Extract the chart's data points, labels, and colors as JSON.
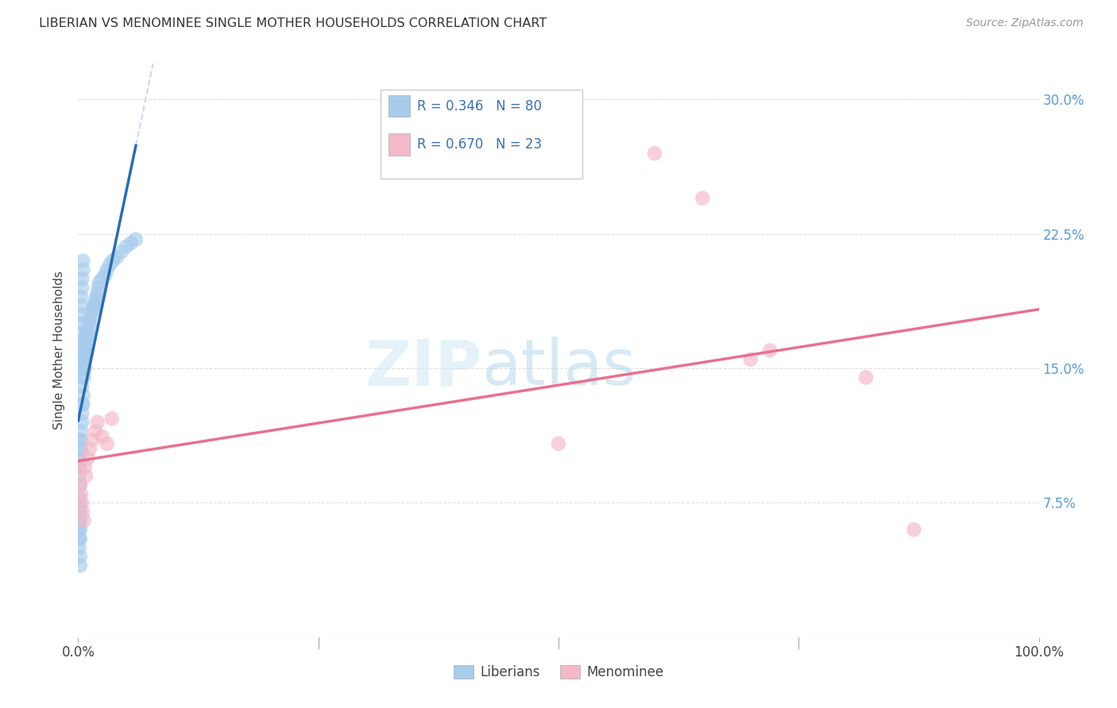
{
  "title": "LIBERIAN VS MENOMINEE SINGLE MOTHER HOUSEHOLDS CORRELATION CHART",
  "source": "Source: ZipAtlas.com",
  "ylabel": "Single Mother Households",
  "xlim": [
    0.0,
    1.0
  ],
  "ylim": [
    0.0,
    0.32
  ],
  "yticks": [
    0.075,
    0.15,
    0.225,
    0.3
  ],
  "ytick_labels": [
    "7.5%",
    "15.0%",
    "22.5%",
    "30.0%"
  ],
  "blue_scatter_color": "#a8ccec",
  "pink_scatter_color": "#f4b8c8",
  "blue_line_color": "#2b6cb0",
  "pink_line_color": "#e87090",
  "dashed_line_color": "#b8d4ee",
  "background_color": "#ffffff",
  "grid_color": "#dddddd",
  "liberian_x": [
    0.001,
    0.001,
    0.001,
    0.001,
    0.001,
    0.001,
    0.001,
    0.001,
    0.001,
    0.002,
    0.002,
    0.002,
    0.002,
    0.002,
    0.002,
    0.002,
    0.002,
    0.002,
    0.002,
    0.002,
    0.003,
    0.003,
    0.003,
    0.003,
    0.003,
    0.003,
    0.003,
    0.003,
    0.003,
    0.004,
    0.004,
    0.004,
    0.004,
    0.004,
    0.004,
    0.004,
    0.005,
    0.005,
    0.005,
    0.005,
    0.005,
    0.005,
    0.006,
    0.006,
    0.006,
    0.006,
    0.007,
    0.007,
    0.007,
    0.007,
    0.008,
    0.008,
    0.008,
    0.009,
    0.009,
    0.01,
    0.01,
    0.011,
    0.011,
    0.012,
    0.013,
    0.014,
    0.015,
    0.016,
    0.017,
    0.018,
    0.019,
    0.02,
    0.021,
    0.022,
    0.025,
    0.028,
    0.03,
    0.033,
    0.036,
    0.04,
    0.045,
    0.05,
    0.055,
    0.06
  ],
  "liberian_y": [
    0.09,
    0.095,
    0.1,
    0.078,
    0.072,
    0.065,
    0.06,
    0.055,
    0.05,
    0.105,
    0.11,
    0.098,
    0.085,
    0.075,
    0.07,
    0.065,
    0.06,
    0.055,
    0.045,
    0.04,
    0.19,
    0.185,
    0.18,
    0.175,
    0.17,
    0.165,
    0.115,
    0.11,
    0.105,
    0.2,
    0.195,
    0.145,
    0.14,
    0.13,
    0.125,
    0.12,
    0.21,
    0.205,
    0.155,
    0.15,
    0.135,
    0.13,
    0.16,
    0.155,
    0.15,
    0.145,
    0.165,
    0.16,
    0.155,
    0.15,
    0.168,
    0.162,
    0.158,
    0.17,
    0.165,
    0.172,
    0.168,
    0.175,
    0.17,
    0.178,
    0.175,
    0.18,
    0.182,
    0.185,
    0.185,
    0.188,
    0.19,
    0.192,
    0.195,
    0.198,
    0.2,
    0.202,
    0.205,
    0.208,
    0.21,
    0.212,
    0.215,
    0.218,
    0.22,
    0.222
  ],
  "menominee_x": [
    0.001,
    0.002,
    0.003,
    0.004,
    0.005,
    0.006,
    0.007,
    0.008,
    0.01,
    0.012,
    0.015,
    0.018,
    0.02,
    0.025,
    0.03,
    0.035,
    0.5,
    0.6,
    0.65,
    0.7,
    0.72,
    0.82,
    0.87
  ],
  "menominee_y": [
    0.095,
    0.085,
    0.08,
    0.075,
    0.07,
    0.065,
    0.095,
    0.09,
    0.1,
    0.105,
    0.11,
    0.115,
    0.12,
    0.112,
    0.108,
    0.122,
    0.108,
    0.27,
    0.245,
    0.155,
    0.16,
    0.145,
    0.06
  ]
}
